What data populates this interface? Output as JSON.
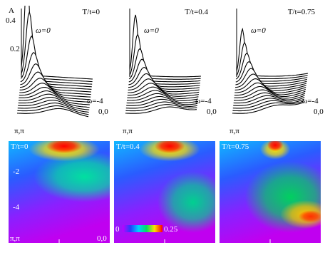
{
  "panels": [
    {
      "label": "T/t=0"
    },
    {
      "label": "T/t=0.4"
    },
    {
      "label": "T/t=0.75"
    }
  ],
  "waterfall": {
    "y_axis": "A",
    "yticks": [
      0.4,
      0.2
    ],
    "omega_top": "ω=0",
    "omega_bottom": "ω=-4",
    "k_start": "π,π",
    "k_end": "0,0"
  },
  "heatmap": {
    "yticks": [
      -2,
      -4
    ],
    "k_start": "π,π",
    "k_end": "0,0",
    "colorbar": {
      "min": 0,
      "max": 0.25
    }
  }
}
